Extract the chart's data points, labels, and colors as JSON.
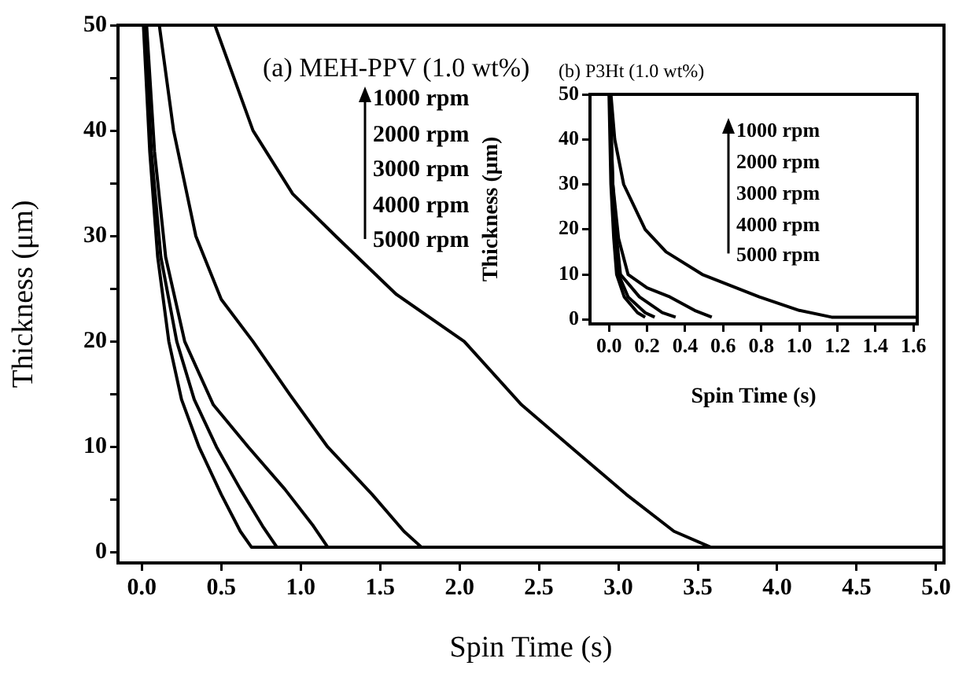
{
  "chart_data": [
    {
      "type": "line",
      "title": "(a) MEH-PPV (1.0 wt%)",
      "xlabel": "Spin Time (s)",
      "ylabel": "Thickness (μm)",
      "annotations": [
        "1000 rpm",
        "2000 rpm",
        "3000 rpm",
        "4000 rpm",
        "5000 rpm"
      ],
      "series": [
        {
          "color": "#000000",
          "x": [
            0.46,
            0.7,
            0.95,
            1.22,
            1.6,
            2.03,
            2.39,
            2.7,
            3.05,
            3.35,
            3.58,
            5.05
          ],
          "values": [
            50,
            40,
            34,
            30,
            24.5,
            20,
            14,
            10,
            5.5,
            2,
            0.5,
            0.5
          ]
        },
        {
          "color": "#000000",
          "x": [
            0.11,
            0.2,
            0.34,
            0.5,
            0.7,
            0.93,
            1.17,
            1.45,
            1.65,
            1.76,
            5.05
          ],
          "values": [
            50,
            40,
            30,
            24,
            20,
            15,
            10,
            5.5,
            2,
            0.5,
            0.5
          ]
        },
        {
          "color": "#000000",
          "x": [
            0.03,
            0.08,
            0.15,
            0.27,
            0.45,
            0.67,
            0.9,
            1.08,
            1.17,
            5.05
          ],
          "values": [
            50,
            38,
            28,
            20,
            14,
            10,
            6,
            2.5,
            0.5,
            0.5
          ]
        },
        {
          "color": "#000000",
          "x": [
            0.02,
            0.06,
            0.12,
            0.22,
            0.33,
            0.47,
            0.62,
            0.76,
            0.85,
            5.05
          ],
          "values": [
            50,
            38,
            28,
            20,
            14.5,
            10,
            6,
            2.5,
            0.5,
            0.5
          ]
        },
        {
          "color": "#000000",
          "x": [
            0.01,
            0.05,
            0.1,
            0.17,
            0.25,
            0.36,
            0.5,
            0.62,
            0.69,
            5.05
          ],
          "values": [
            50,
            38,
            28,
            20,
            14.5,
            10,
            5.5,
            2,
            0.5,
            0.5
          ]
        }
      ],
      "xlim": [
        -0.15,
        5.05
      ],
      "ylim": [
        -1,
        50
      ],
      "xticks": [
        {
          "value": 0,
          "label": "0.0"
        },
        0.5,
        {
          "value": 1,
          "label": "1.0"
        },
        1.5,
        {
          "value": 2,
          "label": "2.0"
        },
        2.5,
        {
          "value": 3,
          "label": "3.0"
        },
        3.5,
        {
          "value": 4,
          "label": "4.0"
        },
        4.5,
        {
          "value": 5,
          "label": "5.0"
        }
      ],
      "yticks": [
        0,
        {
          "value": 5,
          "label": null
        },
        10,
        {
          "value": 15,
          "label": null
        },
        20,
        {
          "value": 25,
          "label": null
        },
        30,
        {
          "value": 35,
          "label": null
        },
        40,
        {
          "value": 45,
          "label": null
        },
        50
      ],
      "marker": "none",
      "line_style": "solid"
    },
    {
      "type": "line",
      "title": "(b) P3Ht (1.0 wt%)",
      "xlabel": "Spin Time (s)",
      "ylabel": "Thickness (μm)",
      "annotations": [
        "1000 rpm",
        "2000 rpm",
        "3000 rpm",
        "4000 rpm",
        "5000 rpm"
      ],
      "series": [
        {
          "color": "#000000",
          "x": [
            0.01,
            0.03,
            0.077,
            0.19,
            0.3,
            0.49,
            0.79,
            1.0,
            1.17,
            1.62
          ],
          "values": [
            50,
            40,
            30,
            20,
            15,
            10,
            5,
            2,
            0.5,
            0.5
          ]
        },
        {
          "color": "#000000",
          "x": [
            0.005,
            0.02,
            0.05,
            0.1,
            0.2,
            0.32,
            0.45,
            0.54
          ],
          "values": [
            50,
            30,
            18,
            10,
            7,
            5,
            2,
            0.5
          ]
        },
        {
          "color": "#000000",
          "x": [
            0.005,
            0.02,
            0.04,
            0.06,
            0.16,
            0.28,
            0.35
          ],
          "values": [
            50,
            30,
            18,
            10,
            5,
            1.5,
            0.5
          ]
        },
        {
          "color": "#000000",
          "x": [
            0.003,
            0.015,
            0.03,
            0.05,
            0.1,
            0.19,
            0.24
          ],
          "values": [
            50,
            30,
            18,
            10,
            5,
            1.5,
            0.5
          ]
        },
        {
          "color": "#000000",
          "x": [
            0.0,
            0.01,
            0.025,
            0.04,
            0.08,
            0.15,
            0.19
          ],
          "values": [
            50,
            30,
            18,
            10,
            5,
            1.5,
            0.5
          ]
        }
      ],
      "xlim": [
        -0.1,
        1.62
      ],
      "ylim": [
        -1,
        50
      ],
      "xticks": [
        {
          "value": 0,
          "label": "0.0"
        },
        0.2,
        0.4,
        0.6,
        0.8,
        {
          "value": 1,
          "label": "1.0"
        },
        1.2,
        1.4,
        1.6
      ],
      "yticks": [
        0,
        10,
        20,
        30,
        40,
        50
      ],
      "marker": "none",
      "line_style": "solid"
    }
  ]
}
